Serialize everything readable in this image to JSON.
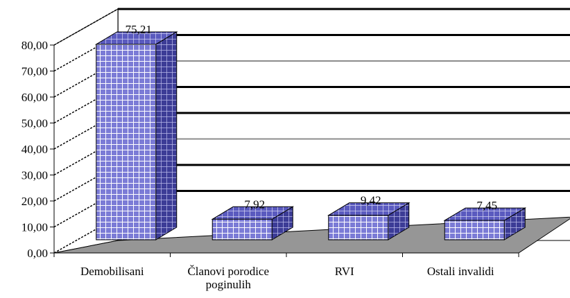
{
  "chart_data": {
    "type": "bar",
    "categories": [
      "Demobilisani",
      "Članovi porodice poginulih",
      "RVI",
      "Ostali invalidi"
    ],
    "category_lines": [
      [
        "Demobilisani"
      ],
      [
        "Članovi porodice",
        "poginulih"
      ],
      [
        "RVI"
      ],
      [
        "Ostali invalidi"
      ]
    ],
    "values": [
      75.21,
      7.92,
      9.42,
      7.45
    ],
    "data_labels": [
      "75,21",
      "7,92",
      "9,42",
      "7,45"
    ],
    "ylim": [
      0,
      80
    ],
    "yticks": [
      "0,00",
      "10,00",
      "20,00",
      "30,00",
      "40,00",
      "50,00",
      "60,00",
      "70,00",
      "80,00"
    ],
    "grid": true,
    "three_d": true,
    "legend": "none",
    "colors": {
      "bar_face": "#7b7bd6",
      "bar_grid": "#ffffff",
      "bar_side": "#3c3c96",
      "bar_top": "#5a5abf",
      "floor": "#969696",
      "wall_back": "#ffffff",
      "gridline": "#000000",
      "gridline_alt": "#8c8c8c"
    }
  }
}
